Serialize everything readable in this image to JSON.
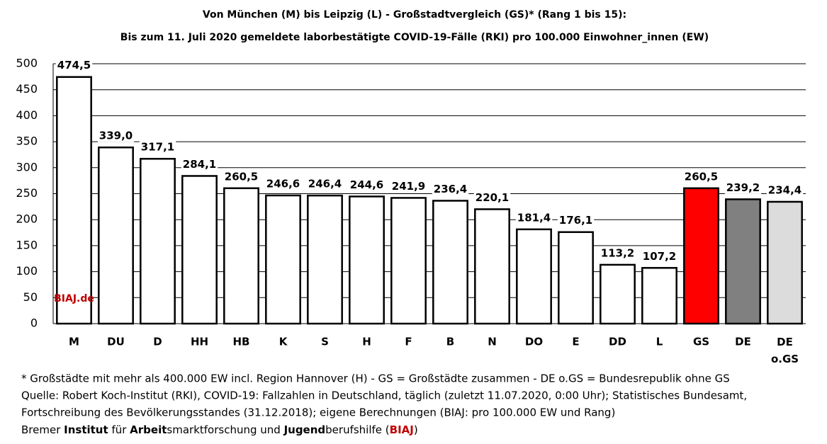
{
  "chart_data": {
    "type": "bar",
    "title": "Von München (M) bis Leipzig (L)  - Großstadtvergleich (GS)* (Rang 1 bis 15):",
    "subtitle": "Bis zum 11. Juli 2020 gemeldete laborbestätigte COVID-19-Fälle (RKI) pro 100.000 Einwohner_innen (EW)",
    "categories": [
      "M",
      "DU",
      "D",
      "HH",
      "HB",
      "K",
      "S",
      "H",
      "F",
      "B",
      "N",
      "DO",
      "E",
      "DD",
      "L",
      "GS",
      "DE",
      "DE o.GS"
    ],
    "values": [
      474.5,
      339.0,
      317.1,
      284.1,
      260.5,
      246.6,
      246.4,
      244.6,
      241.9,
      236.4,
      220.1,
      181.4,
      176.1,
      113.2,
      107.2,
      260.5,
      239.2,
      234.4
    ],
    "value_labels": [
      "474,5",
      "339,0",
      "317,1",
      "284,1",
      "260,5",
      "246,6",
      "246,4",
      "244,6",
      "241,9",
      "236,4",
      "220,1",
      "181,4",
      "176,1",
      "113,2",
      "107,2",
      "260,5",
      "239,2",
      "234,4"
    ],
    "colors": [
      "#ffffff",
      "#ffffff",
      "#ffffff",
      "#ffffff",
      "#ffffff",
      "#ffffff",
      "#ffffff",
      "#ffffff",
      "#ffffff",
      "#ffffff",
      "#ffffff",
      "#ffffff",
      "#ffffff",
      "#ffffff",
      "#ffffff",
      "#ff0000",
      "#808080",
      "#dcdcdc"
    ],
    "ylim": [
      0,
      500
    ],
    "yticks": [
      0,
      50,
      100,
      150,
      200,
      250,
      300,
      350,
      400,
      450,
      500
    ],
    "grid": true,
    "watermark": "BIAJ.de"
  },
  "footnotes": [
    "* Großstädte mit mehr als 400.000 EW incl. Region Hannover (H) - GS = Großstädte zusammen - DE o.GS = Bundesrepublik ohne GS",
    "Quelle: Robert Koch-Institut (RKI), COVID-19: Fallzahlen in Deutschland, täglich (zuletzt 11.07.2020, 0:00 Uhr); Statistisches Bundesamt,",
    "Fortschreibung des Bevölkerungsstandes (31.12.2018); eigene Berechnungen (BIAJ: pro 100.000 EW und Rang)"
  ],
  "credit": [
    {
      "text": "Bremer "
    },
    {
      "text": "Institut",
      "bold": true
    },
    {
      "text": " für "
    },
    {
      "text": "Arbeit",
      "bold": true
    },
    {
      "text": "smarktforschung und "
    },
    {
      "text": "Jugend",
      "bold": true
    },
    {
      "text": "berufshilfe ("
    },
    {
      "text": "BIAJ",
      "bold": true,
      "color": "#c00000"
    },
    {
      "text": ")"
    }
  ]
}
